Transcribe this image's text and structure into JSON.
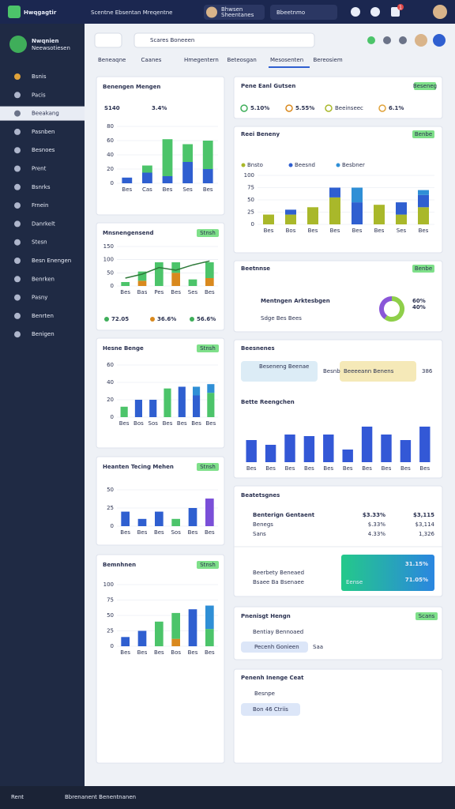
{
  "topbar": {
    "brand": "Hwqgagtir",
    "title": "Scentne Ebsentan Mreqentne",
    "user": "Bhwsen",
    "user_sub": "Sheentanes",
    "pill": "Bbeetnmo",
    "badge": "1"
  },
  "sidebar": {
    "title": "Nwqnien",
    "subtitle": "Neewsotiesen",
    "items": [
      "Bsnis",
      "Pacis",
      "Beeakang",
      "Pasnben",
      "Besnoes",
      "Prent",
      "Bsnrks",
      "Frnein",
      "Danrkelt",
      "Stesn",
      "Besn Enengen",
      "Benrken",
      "Pasny",
      "Benrten",
      "Benigen"
    ],
    "active": 2
  },
  "search": {
    "placeholder": "Scares Boneeen"
  },
  "tabs": {
    "items": [
      "Beneaqne",
      "Caanes",
      "Hmegentern",
      "Beteosgan",
      "Mesosenten",
      "Bereosiem"
    ],
    "active": 4
  },
  "kpi": {
    "title": "Pene Eanl Gutsen",
    "button": "Beseneg",
    "items": [
      "5.10%",
      "5.55%",
      "Beeinseec",
      "6.1%"
    ]
  },
  "pills_card": {
    "title": "Beesnenes",
    "pills": [
      "Beseneng Beenae",
      "Besnb",
      "Beeeeann Benens"
    ],
    "side": "386"
  },
  "table": {
    "title": "Beatetsgnes",
    "rows": [
      [
        "Benterign Gentaent",
        "$3.33%",
        "$3,115"
      ],
      [
        "Benegs",
        "$.33%",
        "$3,114"
      ],
      [
        "Sans",
        "4.33%",
        "1,326"
      ]
    ],
    "highlight": [
      "31.15%",
      "71.05%",
      "Eense"
    ],
    "foot": [
      "Beerbety Beneaed",
      "Bsaee Ba Bsenaee"
    ]
  },
  "hengn": {
    "title": "Pnenisgt Hengn",
    "line": "Bentiay Bennoaed",
    "pill": "Pecenh Gonieen",
    "side": "Saa",
    "button": "Scans"
  },
  "ceat": {
    "title": "Penenh Inenge Ceat",
    "line": "Besnpe",
    "pill": "Bon 46 Ctriis"
  },
  "bottombar": {
    "left": "Rent",
    "text": "Bbrenanent Benentnanen"
  },
  "chart_data": [
    {
      "type": "bar",
      "title": "Benengen Mengen",
      "stats": [
        "S140",
        "3.4%"
      ],
      "stacked": true,
      "categories": [
        "Bes",
        "Cas",
        "Bes",
        "Ses",
        "Bes"
      ],
      "series": [
        {
          "color": "#2f5fd0",
          "values": [
            8,
            15,
            10,
            30,
            20
          ]
        },
        {
          "color": "#4cc46a",
          "values": [
            0,
            10,
            52,
            25,
            40
          ]
        }
      ],
      "ylim": [
        0,
        80
      ],
      "yticks": [
        0,
        20,
        40,
        60,
        80
      ]
    },
    {
      "type": "bar",
      "title": "Mnsnengensend",
      "button": "Stnsh",
      "stats": [
        "72.05",
        "36.6%",
        "56.6%"
      ],
      "stacked": true,
      "categories": [
        "Bes",
        "Bas",
        "Pes",
        "Bes",
        "Ses",
        "Bes"
      ],
      "series": [
        {
          "color": "#d9891e",
          "values": [
            0,
            20,
            0,
            50,
            0,
            30
          ]
        },
        {
          "color": "#4cc46a",
          "values": [
            15,
            35,
            90,
            40,
            25,
            60
          ]
        },
        {
          "color": "#2f7a3a",
          "kind": "line",
          "values": [
            30,
            45,
            70,
            60,
            80,
            95
          ]
        }
      ],
      "ylim": [
        0,
        150
      ],
      "yticks": [
        0,
        50,
        100,
        150
      ]
    },
    {
      "type": "bar",
      "title": "Hesne Benge",
      "button": "Stnsh",
      "stacked": true,
      "categories": [
        "Bes",
        "Bos",
        "Sos",
        "Bes",
        "Bes",
        "Bes",
        "Bes"
      ],
      "series": [
        {
          "color": "#2f5fd0",
          "values": [
            0,
            20,
            20,
            0,
            35,
            25,
            0
          ]
        },
        {
          "color": "#4cc46a",
          "values": [
            12,
            0,
            0,
            33,
            0,
            0,
            28
          ]
        },
        {
          "color": "#2f8fd6",
          "values": [
            0,
            0,
            0,
            0,
            0,
            10,
            10
          ]
        }
      ],
      "ylim": [
        0,
        60
      ],
      "yticks": [
        0,
        20,
        40,
        60
      ]
    },
    {
      "type": "bar",
      "title": "Heanten Tecing Mehen",
      "button": "Stnsh",
      "stacked": true,
      "categories": [
        "Bes",
        "Bes",
        "Bes",
        "Sos",
        "Bes",
        "Bes"
      ],
      "series": [
        {
          "color": "#2f5fd0",
          "values": [
            20,
            10,
            20,
            0,
            25,
            0
          ]
        },
        {
          "color": "#4cc46a",
          "values": [
            0,
            0,
            0,
            10,
            0,
            0
          ]
        },
        {
          "color": "#7a4fd8",
          "values": [
            0,
            0,
            0,
            0,
            0,
            38
          ]
        }
      ],
      "ylim": [
        0,
        50
      ],
      "yticks": [
        0,
        25,
        50
      ]
    },
    {
      "type": "bar",
      "title": "Bemnhnen",
      "button": "Stnsh",
      "stacked": true,
      "categories": [
        "Bes",
        "Bes",
        "Bes",
        "Bos",
        "Bes",
        "Bes"
      ],
      "series": [
        {
          "color": "#2f5fd0",
          "values": [
            15,
            25,
            0,
            0,
            60,
            0
          ]
        },
        {
          "color": "#d9891e",
          "values": [
            0,
            0,
            0,
            12,
            0,
            0
          ]
        },
        {
          "color": "#4cc46a",
          "values": [
            0,
            0,
            40,
            42,
            0,
            28
          ]
        },
        {
          "color": "#2f8fd6",
          "values": [
            0,
            0,
            0,
            0,
            0,
            38
          ]
        }
      ],
      "ylim": [
        0,
        100
      ],
      "yticks": [
        0,
        25,
        50,
        75,
        100
      ]
    },
    {
      "type": "bar",
      "title": "Reei Beneny",
      "button": "Benbe",
      "stacked": true,
      "legend": true,
      "categories": [
        "Bes",
        "Bos",
        "Bes",
        "Bes",
        "Bes",
        "Bes",
        "Ses",
        "Bes"
      ],
      "series": [
        {
          "name": "Bnsto",
          "color": "#a9b82a",
          "values": [
            20,
            20,
            35,
            55,
            0,
            40,
            20,
            35
          ]
        },
        {
          "name": "Beesnd",
          "color": "#2f5fd0",
          "values": [
            0,
            10,
            0,
            20,
            45,
            0,
            25,
            25
          ]
        },
        {
          "name": "Besbner",
          "color": "#2f8fd6",
          "values": [
            0,
            0,
            0,
            0,
            30,
            0,
            0,
            10
          ]
        }
      ],
      "ylim": [
        0,
        100
      ],
      "yticks": [
        0,
        25,
        50,
        75,
        100
      ]
    },
    {
      "type": "bar",
      "title": "Bette Reengchen",
      "stacked": false,
      "categories": [
        "Bes",
        "Bes",
        "Bes",
        "Bes",
        "Bes",
        "Bes",
        "Bes",
        "Bes",
        "Bes",
        "Bes"
      ],
      "series": [
        {
          "color": "#3358d6",
          "values": [
            28,
            22,
            35,
            33,
            35,
            16,
            45,
            35,
            28,
            45
          ]
        }
      ],
      "ylim": [
        0,
        50
      ]
    },
    {
      "type": "donut",
      "title": "Beetnnse",
      "button": "Benbe",
      "label": "Mentngen Arktesbgen",
      "sub": "Sdge Bes Bees",
      "values": [
        60,
        40
      ],
      "value_labels": [
        "60%",
        "40%"
      ],
      "colors": [
        "#8fcf4a",
        "#8a56d8"
      ]
    }
  ]
}
